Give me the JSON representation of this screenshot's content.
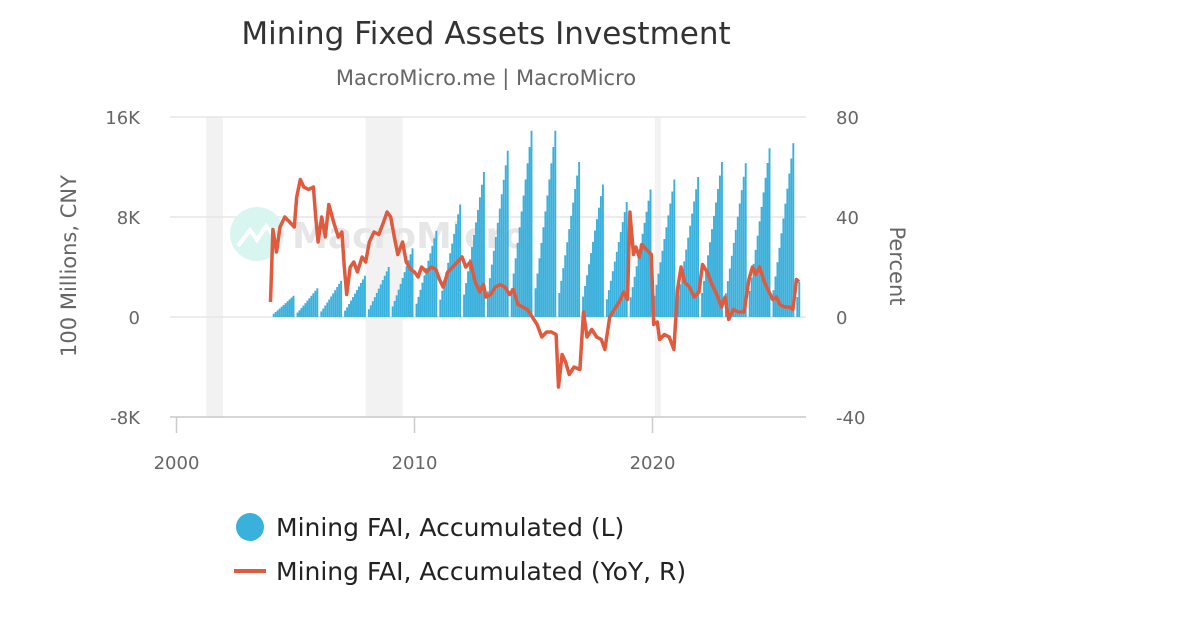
{
  "chart_data": {
    "type": "bar+line",
    "title": "Mining Fixed Assets Investment",
    "subtitle": "MacroMicro.me | MacroMicro",
    "watermark": "MacroMicro",
    "x_ticks": [
      "2000",
      "2010",
      "2020"
    ],
    "xlim": [
      2000,
      2026.5
    ],
    "y_left": {
      "label": "100 Millions, CNY",
      "ticks": [
        "16K",
        "8K",
        "0",
        "-8K"
      ],
      "ylim": [
        -8000,
        16000
      ]
    },
    "y_right": {
      "label": "Percent",
      "ticks": [
        "80",
        "40",
        "0",
        "-40"
      ],
      "ylim": [
        -40,
        80
      ]
    },
    "shaded_ranges": [
      [
        2001.25,
        2001.95
      ],
      [
        2007.95,
        2009.5
      ],
      [
        2020.1,
        2020.35
      ]
    ],
    "colors": {
      "bar": "#3ab0dc",
      "line": "#e05a3e",
      "grid": "#e6e6e6",
      "shade": "#f2f2f2"
    },
    "bar_series": {
      "name": "Mining FAI, Accumulated (L)",
      "annual_peaks": [
        [
          2004,
          1700
        ],
        [
          2005,
          2300
        ],
        [
          2006,
          2900
        ],
        [
          2007,
          3300
        ],
        [
          2008,
          4000
        ],
        [
          2009,
          5500
        ],
        [
          2010,
          6900
        ],
        [
          2011,
          9000
        ],
        [
          2012,
          11600
        ],
        [
          2013,
          13300
        ],
        [
          2014,
          14900
        ],
        [
          2015,
          14900
        ],
        [
          2016,
          12400
        ],
        [
          2017,
          10600
        ],
        [
          2018,
          9200
        ],
        [
          2019,
          10200
        ],
        [
          2020,
          11000
        ],
        [
          2021,
          11200
        ],
        [
          2022,
          12400
        ],
        [
          2023,
          12300
        ],
        [
          2024,
          13500
        ],
        [
          2025,
          13900
        ],
        [
          2026,
          2800
        ]
      ]
    },
    "line_series": {
      "name": "Mining FAI, Accumulated (YoY, R)",
      "points": [
        [
          2003.95,
          6
        ],
        [
          2004.05,
          35
        ],
        [
          2004.2,
          26
        ],
        [
          2004.35,
          36
        ],
        [
          2004.55,
          40
        ],
        [
          2004.75,
          38
        ],
        [
          2004.95,
          36
        ],
        [
          2005.05,
          48
        ],
        [
          2005.2,
          55
        ],
        [
          2005.35,
          52
        ],
        [
          2005.55,
          51
        ],
        [
          2005.75,
          52
        ],
        [
          2005.85,
          40
        ],
        [
          2005.95,
          30
        ],
        [
          2006.1,
          40
        ],
        [
          2006.25,
          32
        ],
        [
          2006.4,
          45
        ],
        [
          2006.6,
          38
        ],
        [
          2006.8,
          32
        ],
        [
          2006.95,
          34
        ],
        [
          2007.05,
          20
        ],
        [
          2007.15,
          9
        ],
        [
          2007.3,
          20
        ],
        [
          2007.45,
          22
        ],
        [
          2007.6,
          18
        ],
        [
          2007.8,
          24
        ],
        [
          2007.95,
          22
        ],
        [
          2008.1,
          30
        ],
        [
          2008.3,
          34
        ],
        [
          2008.5,
          33
        ],
        [
          2008.7,
          38
        ],
        [
          2008.85,
          42
        ],
        [
          2009.0,
          40
        ],
        [
          2009.15,
          32
        ],
        [
          2009.3,
          25
        ],
        [
          2009.5,
          30
        ],
        [
          2009.65,
          22
        ],
        [
          2009.85,
          19
        ],
        [
          2010.0,
          18
        ],
        [
          2010.15,
          16
        ],
        [
          2010.3,
          20
        ],
        [
          2010.5,
          18
        ],
        [
          2010.7,
          20
        ],
        [
          2010.9,
          19
        ],
        [
          2011.05,
          15
        ],
        [
          2011.2,
          12
        ],
        [
          2011.4,
          18
        ],
        [
          2011.6,
          20
        ],
        [
          2011.8,
          22
        ],
        [
          2012.0,
          24
        ],
        [
          2012.15,
          20
        ],
        [
          2012.35,
          22
        ],
        [
          2012.55,
          14
        ],
        [
          2012.75,
          10
        ],
        [
          2012.9,
          13
        ],
        [
          2013.0,
          8
        ],
        [
          2013.2,
          9
        ],
        [
          2013.4,
          12
        ],
        [
          2013.6,
          13
        ],
        [
          2013.8,
          12
        ],
        [
          2014.0,
          9
        ],
        [
          2014.15,
          11
        ],
        [
          2014.35,
          5
        ],
        [
          2014.55,
          4
        ],
        [
          2014.75,
          3
        ],
        [
          2014.95,
          0
        ],
        [
          2015.15,
          -3
        ],
        [
          2015.35,
          -8
        ],
        [
          2015.55,
          -6
        ],
        [
          2015.75,
          -6
        ],
        [
          2015.95,
          -7
        ],
        [
          2016.05,
          -28
        ],
        [
          2016.2,
          -15
        ],
        [
          2016.35,
          -18
        ],
        [
          2016.5,
          -23
        ],
        [
          2016.7,
          -20
        ],
        [
          2016.95,
          -21
        ],
        [
          2017.1,
          2
        ],
        [
          2017.25,
          -8
        ],
        [
          2017.45,
          -5
        ],
        [
          2017.65,
          -8
        ],
        [
          2017.85,
          -9
        ],
        [
          2018.0,
          -13
        ],
        [
          2018.2,
          0
        ],
        [
          2018.4,
          3
        ],
        [
          2018.6,
          6
        ],
        [
          2018.8,
          10
        ],
        [
          2018.95,
          7
        ],
        [
          2019.05,
          42
        ],
        [
          2019.2,
          25
        ],
        [
          2019.3,
          28
        ],
        [
          2019.45,
          24
        ],
        [
          2019.55,
          29
        ],
        [
          2019.75,
          27
        ],
        [
          2019.95,
          25
        ],
        [
          2020.05,
          -3
        ],
        [
          2020.2,
          -2
        ],
        [
          2020.3,
          -9
        ],
        [
          2020.5,
          -7
        ],
        [
          2020.7,
          -8
        ],
        [
          2020.9,
          -13
        ],
        [
          2021.05,
          11
        ],
        [
          2021.2,
          20
        ],
        [
          2021.35,
          14
        ],
        [
          2021.55,
          12
        ],
        [
          2021.75,
          8
        ],
        [
          2021.95,
          10
        ],
        [
          2022.1,
          21
        ],
        [
          2022.3,
          18
        ],
        [
          2022.5,
          13
        ],
        [
          2022.7,
          9
        ],
        [
          2022.9,
          4
        ],
        [
          2023.05,
          8
        ],
        [
          2023.2,
          -1
        ],
        [
          2023.4,
          3
        ],
        [
          2023.6,
          2
        ],
        [
          2023.85,
          2
        ],
        [
          2024.05,
          15
        ],
        [
          2024.2,
          20
        ],
        [
          2024.35,
          17
        ],
        [
          2024.5,
          20
        ],
        [
          2024.7,
          14
        ],
        [
          2024.9,
          10
        ],
        [
          2025.05,
          7
        ],
        [
          2025.2,
          8
        ],
        [
          2025.35,
          5
        ],
        [
          2025.55,
          4
        ],
        [
          2025.75,
          4
        ],
        [
          2025.9,
          3
        ],
        [
          2026.05,
          15
        ],
        [
          2026.15,
          14
        ]
      ]
    },
    "legend": {
      "position": "bottom"
    }
  }
}
